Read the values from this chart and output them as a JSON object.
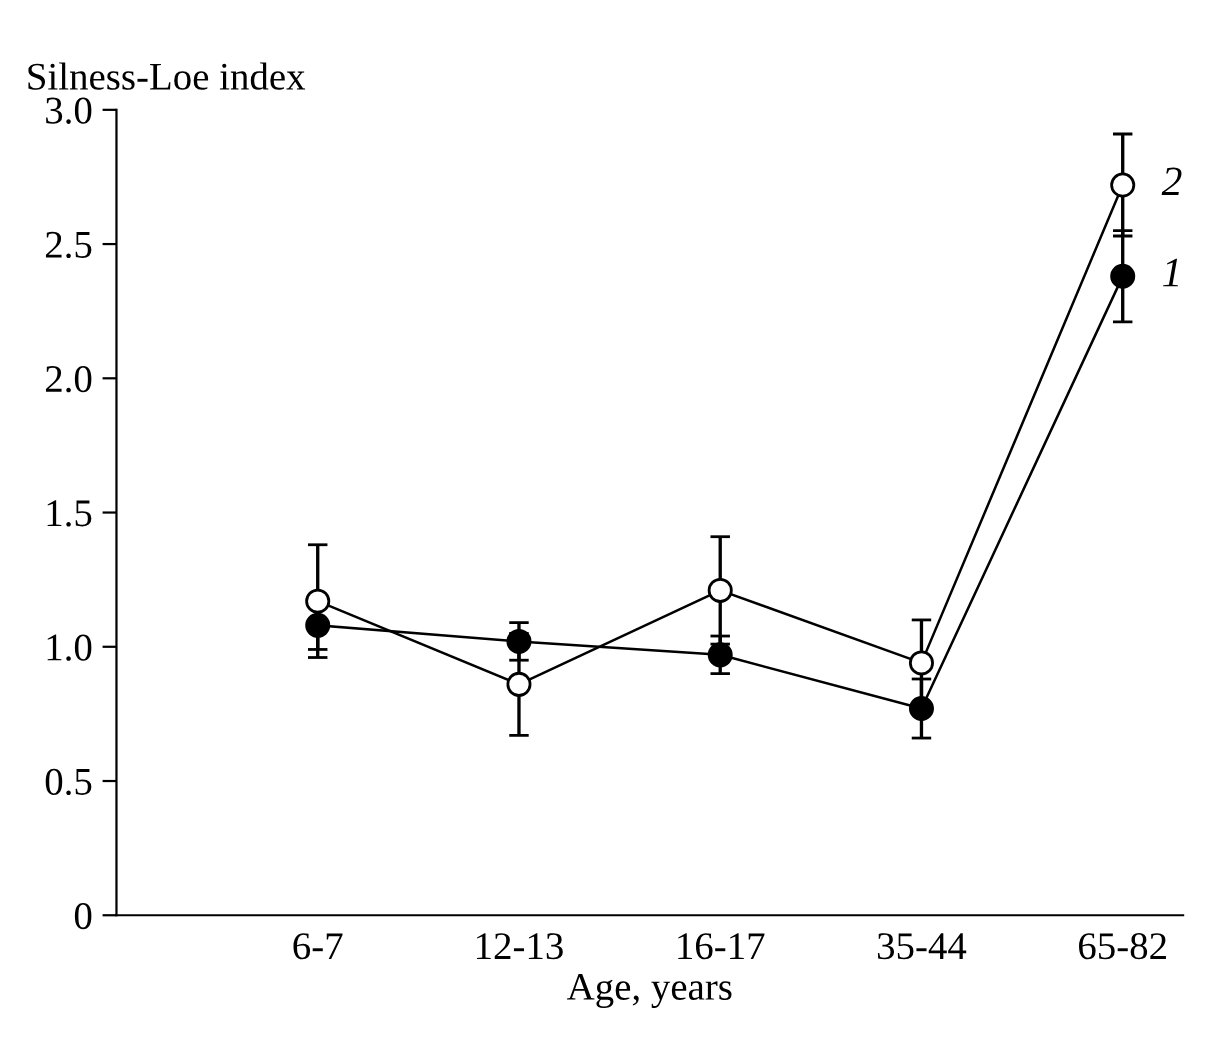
{
  "chart_data": {
    "type": "line",
    "ylabel": "Silness-Loe index",
    "xlabel": "Age, years",
    "categories": [
      "6-7",
      "12-13",
      "16-17",
      "35-44",
      "65-82"
    ],
    "series": [
      {
        "name": "1",
        "color": "#000000",
        "values": [
          1.08,
          1.02,
          0.97,
          0.77,
          2.38
        ],
        "errors": [
          0.09,
          0.07,
          0.07,
          0.11,
          0.17
        ]
      },
      {
        "name": "2",
        "color": "#000000",
        "values": [
          1.17,
          0.86,
          1.21,
          0.94,
          2.72
        ],
        "errors": [
          0.21,
          0.19,
          0.2,
          0.16,
          0.19
        ]
      }
    ],
    "ylim": [
      0,
      3.0
    ],
    "yticks": [
      {
        "value": 0,
        "label": "0"
      },
      {
        "value": 0.5,
        "label": "0.5"
      },
      {
        "value": 1.0,
        "label": "1.0"
      },
      {
        "value": 1.5,
        "label": "1.5"
      },
      {
        "value": 2.0,
        "label": "2.0"
      },
      {
        "value": 2.5,
        "label": "2.5"
      },
      {
        "value": 3.0,
        "label": "3.0"
      }
    ],
    "marker": "circle",
    "line_style": "solid",
    "grid": false,
    "legend": false
  }
}
